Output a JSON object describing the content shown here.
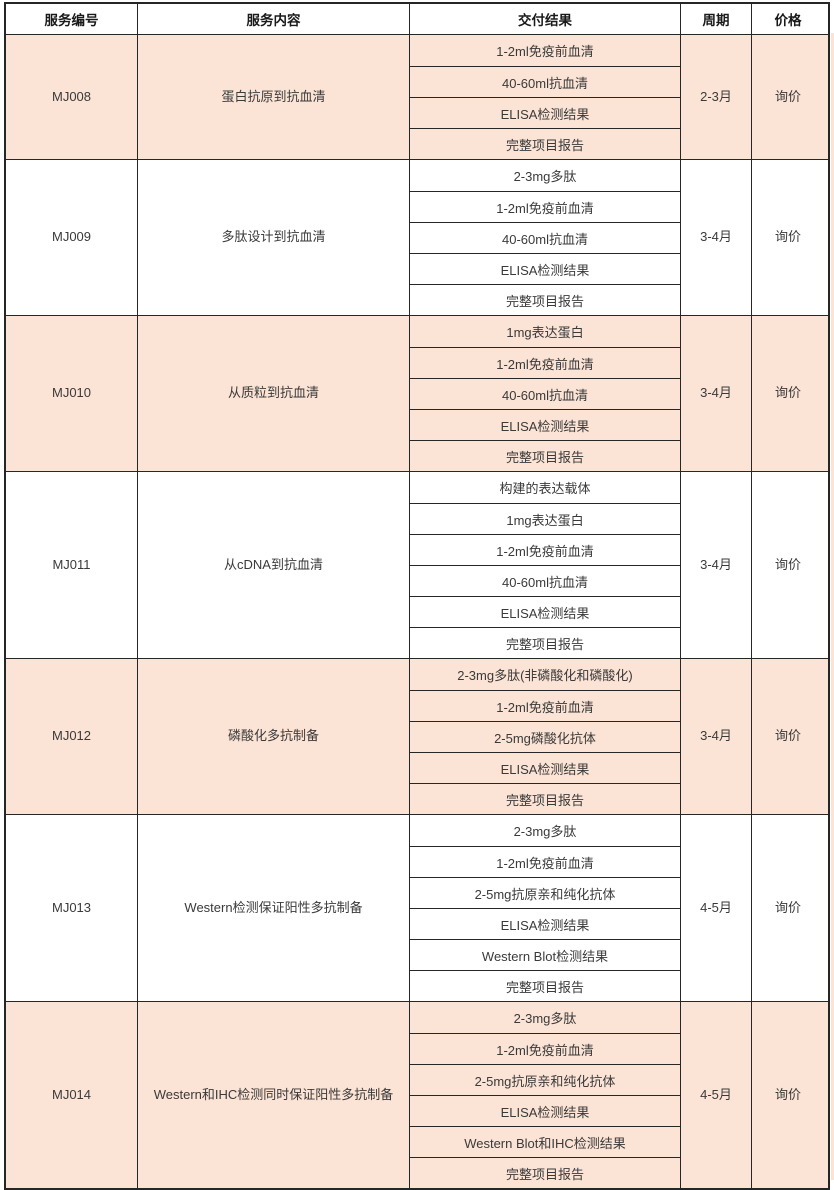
{
  "header": {
    "columns": [
      "服务编号",
      "服务内容",
      "交付结果",
      "周期",
      "价格"
    ]
  },
  "rows": [
    {
      "code": "MJ008",
      "content": "蛋白抗原到抗血清",
      "deliverables": [
        "1-2ml免疫前血清",
        "40-60ml抗血清",
        "ELISA检测结果",
        "完整项目报告"
      ],
      "cycle": "2-3月",
      "price": "询价",
      "shaded": true
    },
    {
      "code": "MJ009",
      "content": "多肽设计到抗血清",
      "deliverables": [
        "2-3mg多肽",
        "1-2ml免疫前血清",
        "40-60ml抗血清",
        "ELISA检测结果",
        "完整项目报告"
      ],
      "cycle": "3-4月",
      "price": "询价",
      "shaded": false
    },
    {
      "code": "MJ010",
      "content": "从质粒到抗血清",
      "deliverables": [
        "1mg表达蛋白",
        "1-2ml免疫前血清",
        "40-60ml抗血清",
        "ELISA检测结果",
        "完整项目报告"
      ],
      "cycle": "3-4月",
      "price": "询价",
      "shaded": true
    },
    {
      "code": "MJ011",
      "content": "从cDNA到抗血清",
      "deliverables": [
        "构建的表达载体",
        "1mg表达蛋白",
        "1-2ml免疫前血清",
        "40-60ml抗血清",
        "ELISA检测结果",
        "完整项目报告"
      ],
      "cycle": "3-4月",
      "price": "询价",
      "shaded": false
    },
    {
      "code": "MJ012",
      "content": "磷酸化多抗制备",
      "deliverables": [
        "2-3mg多肽(非磷酸化和磷酸化)",
        "1-2ml免疫前血清",
        "2-5mg磷酸化抗体",
        "ELISA检测结果",
        "完整项目报告"
      ],
      "cycle": "3-4月",
      "price": "询价",
      "shaded": true
    },
    {
      "code": "MJ013",
      "content": "Western检测保证阳性多抗制备",
      "deliverables": [
        "2-3mg多肽",
        "1-2ml免疫前血清",
        "2-5mg抗原亲和纯化抗体",
        "ELISA检测结果",
        "Western Blot检测结果",
        "完整项目报告"
      ],
      "cycle": "4-5月",
      "price": "询价",
      "shaded": false
    },
    {
      "code": "MJ014",
      "content": "Western和IHC检测同时保证阳性多抗制备",
      "deliverables": [
        "2-3mg多肽",
        "1-2ml免疫前血清",
        "2-5mg抗原亲和纯化抗体",
        "ELISA检测结果",
        "Western Blot和IHC检测结果",
        "完整项目报告"
      ],
      "cycle": "4-5月",
      "price": "询价",
      "shaded": true
    }
  ],
  "colors": {
    "shaded_row_bg": "#fbe3d5",
    "plain_row_bg": "#ffffff",
    "border": "#262626",
    "text": "#3a3a3a"
  }
}
